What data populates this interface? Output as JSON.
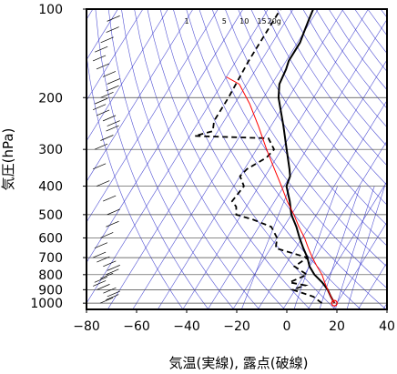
{
  "chart_data": {
    "type": "line",
    "subtype": "skew-t log-p diagram",
    "xlabel": "気温(実線), 露点(破線)",
    "ylabel": "気圧(hPa)",
    "xlim": [
      -80,
      40
    ],
    "ylim": [
      1050,
      100
    ],
    "y_scale": "log",
    "x_ticks": [
      "−80",
      "−60",
      "−40",
      "−20",
      "0",
      "20",
      "40"
    ],
    "x_tick_values": [
      -80,
      -60,
      -40,
      -20,
      0,
      20,
      40
    ],
    "y_ticks": [
      "100",
      "200",
      "300",
      "400",
      "500",
      "600",
      "700",
      "800",
      "900",
      "1000"
    ],
    "y_tick_values": [
      100,
      200,
      300,
      400,
      500,
      600,
      700,
      800,
      900,
      1000
    ],
    "mixing_ratio_labels": [
      "1",
      "5",
      "10",
      "15",
      "20g"
    ],
    "grid": true,
    "colors": {
      "temperature": "#000000",
      "dewpoint": "#000000",
      "parcel": "#ff0000",
      "reference_lines": "#3333cc",
      "grid": "#444444",
      "wind": "#000000"
    },
    "series": [
      {
        "style": "solid-thick",
        "points": [
          [
            1000,
            19
          ],
          [
            950,
            16
          ],
          [
            900,
            13
          ],
          [
            850,
            9
          ],
          [
            800,
            4
          ],
          [
            750,
            0
          ],
          [
            700,
            -3
          ],
          [
            650,
            -7
          ],
          [
            600,
            -11
          ],
          [
            550,
            -15
          ],
          [
            500,
            -20
          ],
          [
            450,
            -24
          ],
          [
            400,
            -29
          ],
          [
            370,
            -30
          ],
          [
            350,
            -32
          ],
          [
            300,
            -38
          ],
          [
            250,
            -45
          ],
          [
            200,
            -54
          ],
          [
            180,
            -57
          ],
          [
            160,
            -58
          ],
          [
            150,
            -59
          ],
          [
            140,
            -59
          ],
          [
            130,
            -59
          ],
          [
            120,
            -60
          ],
          [
            110,
            -61
          ],
          [
            100,
            -62
          ]
        ]
      },
      {
        "style": "dashed",
        "points": [
          [
            1000,
            14
          ],
          [
            950,
            9
          ],
          [
            900,
            -1
          ],
          [
            870,
            3
          ],
          [
            850,
            -4
          ],
          [
            800,
            1
          ],
          [
            750,
            -6
          ],
          [
            700,
            -3
          ],
          [
            650,
            -18
          ],
          [
            600,
            -20
          ],
          [
            550,
            -25
          ],
          [
            520,
            -34
          ],
          [
            500,
            -42
          ],
          [
            470,
            -44
          ],
          [
            450,
            -47
          ],
          [
            400,
            -46
          ],
          [
            370,
            -50
          ],
          [
            350,
            -49
          ],
          [
            320,
            -44
          ],
          [
            300,
            -43
          ],
          [
            275,
            -48
          ],
          [
            270,
            -78
          ],
          [
            260,
            -72
          ],
          [
            240,
            -74
          ],
          [
            200,
            -74
          ],
          [
            150,
            -75
          ],
          [
            100,
            -75
          ]
        ]
      },
      {
        "style": "thin-red",
        "points": [
          [
            1000,
            19
          ],
          [
            950,
            16
          ],
          [
            900,
            13
          ],
          [
            850,
            10
          ],
          [
            800,
            7
          ],
          [
            750,
            3
          ],
          [
            700,
            -1
          ],
          [
            650,
            -5
          ],
          [
            600,
            -9
          ],
          [
            550,
            -14
          ],
          [
            500,
            -19
          ],
          [
            450,
            -25
          ],
          [
            400,
            -31
          ],
          [
            350,
            -38
          ],
          [
            300,
            -46
          ],
          [
            250,
            -55
          ],
          [
            210,
            -64
          ],
          [
            180,
            -73
          ],
          [
            170,
            -80
          ]
        ]
      }
    ],
    "surface_marker": {
      "p": 1000,
      "t": 19
    },
    "wind_barb_stations": [
      1000,
      975,
      950,
      925,
      900,
      875,
      850,
      825,
      800,
      775,
      750,
      725,
      700,
      650,
      600,
      550,
      500,
      450,
      400,
      350,
      300,
      280,
      260,
      250,
      240,
      230,
      220,
      210,
      200,
      190,
      180,
      170,
      160,
      150,
      140,
      130,
      120,
      110,
      100
    ]
  }
}
